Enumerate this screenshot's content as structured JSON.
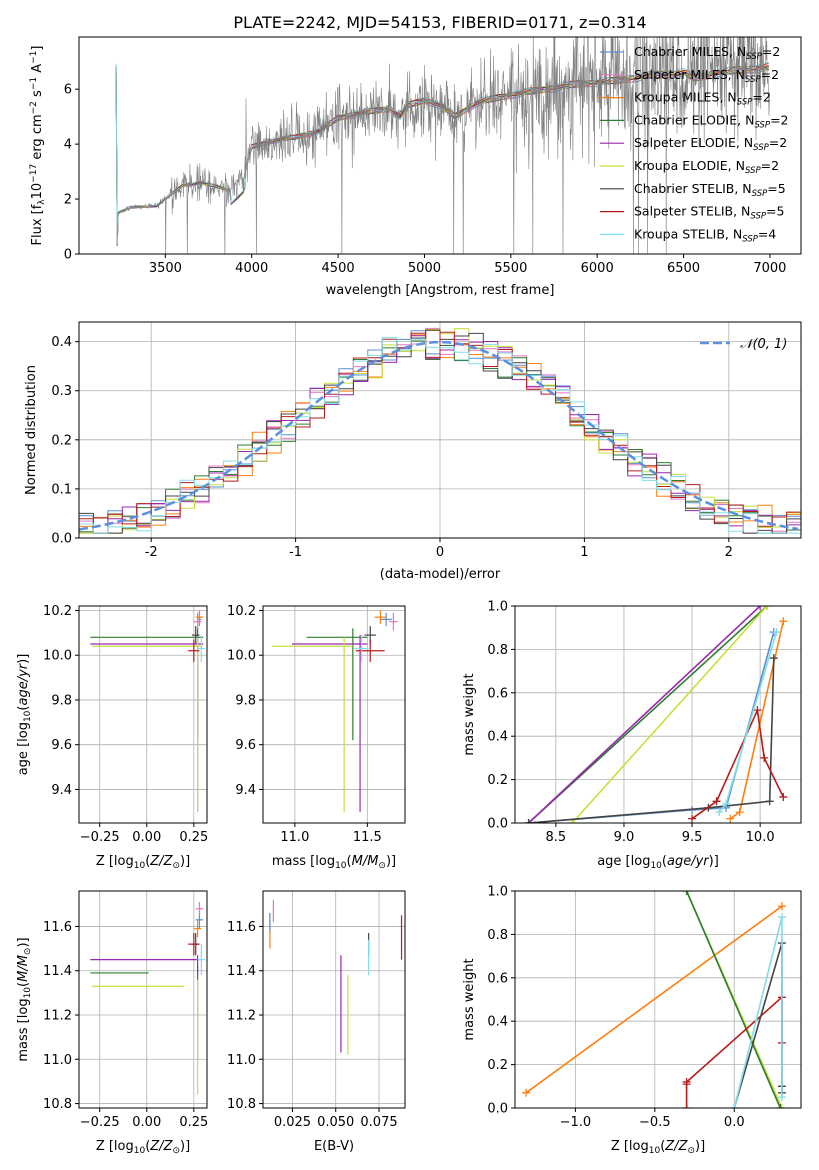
{
  "figure_title": "PLATE=2242, MJD=54153, FIBERID=0171, z=0.314",
  "colors": {
    "chabrier_miles": "#5b8fcf",
    "salpeter_miles": "#e377c2",
    "kroupa_miles": "#ff7f0e",
    "chabrier_elodie": "#2e7d32",
    "salpeter_elodie": "#9c27b0",
    "kroupa_elodie": "#c6e03a",
    "chabrier_stelib": "#444444",
    "salpeter_stelib": "#b71c1c",
    "kroupa_stelib": "#80deea",
    "gauss": "#5b8fe0",
    "data": "#808080"
  },
  "chart_data": [
    {
      "type": "line",
      "panel": "spectrum",
      "title": "PLATE=2242, MJD=54153, FIBERID=0171, z=0.314",
      "xlabel": "wavelength [Angstrom, rest frame]",
      "ylabel": "Flux [fλ 10⁻¹⁷ erg cm⁻² s⁻¹ A⁻¹]",
      "xlim": [
        3000,
        7180
      ],
      "ylim": [
        0,
        7.9
      ],
      "xticks": [
        3500,
        4000,
        4500,
        5000,
        5500,
        6000,
        6500,
        7000
      ],
      "yticks": [
        0,
        2,
        4,
        6
      ],
      "legend_position": "top-right",
      "series": [
        {
          "name": "Chabrier MILES, N_SSP=2",
          "color_key": "chabrier_miles"
        },
        {
          "name": "Salpeter MILES, N_SSP=2",
          "color_key": "salpeter_miles"
        },
        {
          "name": "Kroupa MILES, N_SSP=2",
          "color_key": "kroupa_miles"
        },
        {
          "name": "Chabrier ELODIE, N_SSP=2",
          "color_key": "chabrier_elodie"
        },
        {
          "name": "Salpeter ELODIE, N_SSP=2",
          "color_key": "salpeter_elodie"
        },
        {
          "name": "Kroupa ELODIE, N_SSP=2",
          "color_key": "kroupa_elodie"
        },
        {
          "name": "Chabrier STELIB, N_SSP=5",
          "color_key": "chabrier_stelib"
        },
        {
          "name": "Salpeter STELIB, N_SSP=5",
          "color_key": "salpeter_stelib"
        },
        {
          "name": "Kroupa STELIB, N_SSP=4",
          "color_key": "kroupa_stelib"
        }
      ],
      "continuum": [
        [
          3220,
          0
        ],
        [
          3225,
          1.5
        ],
        [
          3300,
          1.7
        ],
        [
          3450,
          1.75
        ],
        [
          3520,
          2.1
        ],
        [
          3600,
          2.5
        ],
        [
          3700,
          2.6
        ],
        [
          3800,
          2.45
        ],
        [
          3880,
          2.3
        ],
        [
          3950,
          2.8
        ],
        [
          4000,
          3.9
        ],
        [
          4100,
          4.1
        ],
        [
          4250,
          4.25
        ],
        [
          4400,
          4.5
        ],
        [
          4500,
          4.95
        ],
        [
          4600,
          5.1
        ],
        [
          4700,
          5.2
        ],
        [
          4800,
          5.3
        ],
        [
          4860,
          5.0
        ],
        [
          4900,
          5.4
        ],
        [
          5000,
          5.6
        ],
        [
          5100,
          5.4
        ],
        [
          5175,
          5.0
        ],
        [
          5300,
          5.5
        ],
        [
          5500,
          5.8
        ],
        [
          5700,
          6.0
        ],
        [
          5900,
          6.2
        ],
        [
          6100,
          6.3
        ],
        [
          6300,
          6.5
        ],
        [
          6500,
          6.6
        ],
        [
          6563,
          6.4
        ],
        [
          6700,
          6.6
        ],
        [
          6900,
          6.75
        ],
        [
          7000,
          6.8
        ]
      ]
    },
    {
      "type": "histogram",
      "panel": "residuals",
      "xlabel": "(data-model)/error",
      "ylabel": "Normed distribution",
      "xlim": [
        -2.5,
        2.5
      ],
      "ylim": [
        0,
        0.44
      ],
      "xticks": [
        -2,
        -1,
        0,
        1,
        2
      ],
      "yticks": [
        0.0,
        0.1,
        0.2,
        0.3,
        0.4
      ],
      "grid": true,
      "legend_position": "top-right",
      "legend": [
        "𝒩(0, 1)"
      ],
      "gaussian": {
        "mean": 0,
        "sigma": 1
      },
      "bin_width": 0.1
    },
    {
      "type": "line",
      "panel": "age_vs_Z",
      "xlabel": "Z [log10(Z/Z⊙)]",
      "ylabel": "age [log10(age/yr)]",
      "xlim": [
        -0.36,
        0.32
      ],
      "ylim": [
        9.25,
        10.22
      ],
      "xticks": [
        -0.25,
        0.0,
        0.25
      ],
      "yticks": [
        9.4,
        9.6,
        9.8,
        10.0,
        10.2
      ],
      "grid": true,
      "points": [
        {
          "x": 0.28,
          "y": 10.16,
          "xerr": 0.01,
          "yerr": 0.03,
          "color_key": "chabrier_miles"
        },
        {
          "x": 0.27,
          "y": 10.15,
          "xerr": 0.02,
          "yerr": 0.04,
          "color_key": "salpeter_miles"
        },
        {
          "x": 0.28,
          "y": 10.17,
          "xerr": 0.02,
          "yerr": 0.03,
          "color_key": "kroupa_miles"
        },
        {
          "x": 0.27,
          "y": 10.08,
          "x_lo": -0.3,
          "x_hi": 0.3,
          "y_lo": 9.62,
          "y_hi": 10.12,
          "color_key": "chabrier_elodie"
        },
        {
          "x": 0.27,
          "y": 10.05,
          "x_lo": -0.3,
          "x_hi": 0.3,
          "y_lo": 9.3,
          "y_hi": 10.09,
          "color_key": "salpeter_elodie"
        },
        {
          "x": 0.27,
          "y": 10.04,
          "x_lo": -0.29,
          "x_hi": 0.29,
          "y_lo": 9.3,
          "y_hi": 10.08,
          "color_key": "kroupa_elodie"
        },
        {
          "x": 0.26,
          "y": 10.09,
          "xerr": 0.02,
          "yerr": 0.04,
          "color_key": "chabrier_stelib"
        },
        {
          "x": 0.25,
          "y": 10.02,
          "xerr": 0.03,
          "yerr": 0.05,
          "color_key": "salpeter_stelib"
        },
        {
          "x": 0.29,
          "y": 10.03,
          "xerr": 0.02,
          "yerr": 0.06,
          "color_key": "kroupa_stelib"
        }
      ]
    },
    {
      "type": "line",
      "panel": "age_vs_mass",
      "xlabel": "mass [log10(M/M⊙)]",
      "ylabel": "",
      "xlim": [
        10.78,
        11.76
      ],
      "ylim": [
        9.25,
        10.22
      ],
      "xticks": [
        11.0,
        11.5
      ],
      "yticks": [
        9.4,
        9.6,
        9.8,
        10.0,
        10.2
      ],
      "grid": true,
      "points": [
        {
          "x": 11.63,
          "y": 10.16,
          "xerr": 0.04,
          "yerr": 0.03,
          "color_key": "chabrier_miles"
        },
        {
          "x": 11.68,
          "y": 10.15,
          "xerr": 0.03,
          "yerr": 0.04,
          "color_key": "salpeter_miles"
        },
        {
          "x": 11.59,
          "y": 10.17,
          "xerr": 0.04,
          "yerr": 0.03,
          "color_key": "kroupa_miles"
        },
        {
          "x": 11.4,
          "y": 10.08,
          "x_lo": 11.08,
          "x_hi": 11.5,
          "y_lo": 9.62,
          "y_hi": 10.12,
          "color_key": "chabrier_elodie"
        },
        {
          "x": 11.45,
          "y": 10.05,
          "x_lo": 10.98,
          "x_hi": 11.5,
          "y_lo": 9.3,
          "y_hi": 10.09,
          "color_key": "salpeter_elodie"
        },
        {
          "x": 11.34,
          "y": 10.04,
          "x_lo": 10.84,
          "x_hi": 11.4,
          "y_lo": 9.3,
          "y_hi": 10.08,
          "color_key": "kroupa_elodie"
        },
        {
          "x": 11.52,
          "y": 10.09,
          "xerr": 0.04,
          "yerr": 0.04,
          "color_key": "chabrier_stelib"
        },
        {
          "x": 11.52,
          "y": 10.02,
          "xerr": 0.1,
          "yerr": 0.05,
          "color_key": "salpeter_stelib"
        },
        {
          "x": 11.46,
          "y": 10.03,
          "xerr": 0.05,
          "yerr": 0.06,
          "color_key": "kroupa_stelib"
        }
      ]
    },
    {
      "type": "line",
      "panel": "mass_weight_vs_age",
      "xlabel": "age [log10(age/yr)]",
      "ylabel": "mass weight",
      "xlim": [
        8.2,
        10.3
      ],
      "ylim": [
        0,
        1.0
      ],
      "xticks": [
        8.5,
        9.0,
        9.5,
        10.0
      ],
      "yticks": [
        0.0,
        0.2,
        0.4,
        0.6,
        0.8,
        1.0
      ],
      "grid": true,
      "series": [
        {
          "color_key": "chabrier_elodie",
          "x": [
            8.3,
            10.05
          ],
          "y": [
            0.0,
            1.0
          ]
        },
        {
          "color_key": "kroupa_elodie",
          "x": [
            8.62,
            10.05
          ],
          "y": [
            0.0,
            1.0
          ]
        },
        {
          "color_key": "salpeter_elodie",
          "x": [
            8.3,
            10.0
          ],
          "y": [
            0.0,
            1.0
          ]
        },
        {
          "color_key": "chabrier_miles",
          "x": [
            8.3,
            9.5,
            9.75,
            10.1
          ],
          "y": [
            0.0,
            0.06,
            0.07,
            0.88
          ]
        },
        {
          "color_key": "kroupa_miles",
          "x": [
            9.78,
            9.85,
            10.17
          ],
          "y": [
            0.02,
            0.05,
            0.93
          ]
        },
        {
          "color_key": "chabrier_stelib",
          "x": [
            8.3,
            9.62,
            10.07,
            10.1
          ],
          "y": [
            0.0,
            0.07,
            0.1,
            0.76
          ]
        },
        {
          "color_key": "salpeter_stelib",
          "x": [
            9.5,
            9.68,
            9.98,
            10.03,
            10.17
          ],
          "y": [
            0.02,
            0.1,
            0.52,
            0.3,
            0.12
          ]
        },
        {
          "color_key": "kroupa_stelib",
          "x": [
            9.7,
            9.75,
            10.12
          ],
          "y": [
            0.05,
            0.09,
            0.88
          ]
        }
      ]
    },
    {
      "type": "line",
      "panel": "mass_vs_Z",
      "xlabel": "Z [log10(Z/Z⊙)]",
      "ylabel": "mass [log10(M/M⊙)]",
      "xlim": [
        -0.36,
        0.32
      ],
      "ylim": [
        10.78,
        11.76
      ],
      "xticks": [
        -0.25,
        0.0,
        0.25
      ],
      "yticks": [
        10.8,
        11.0,
        11.2,
        11.4,
        11.6
      ],
      "grid": true,
      "points": [
        {
          "x": 0.28,
          "y": 11.63,
          "xerr": 0.02,
          "yerr": 0.04,
          "color_key": "chabrier_miles"
        },
        {
          "x": 0.28,
          "y": 11.68,
          "xerr": 0.02,
          "yerr": 0.03,
          "color_key": "salpeter_miles"
        },
        {
          "x": 0.27,
          "y": 11.59,
          "xerr": 0.02,
          "yerr": 0.04,
          "color_key": "kroupa_miles"
        },
        {
          "x": 0.27,
          "y": 11.39,
          "x_lo": -0.3,
          "x_hi": 0.01,
          "y_lo": 11.0,
          "y_hi": 11.42,
          "color_key": "chabrier_elodie"
        },
        {
          "x": 0.27,
          "y": 11.45,
          "x_lo": -0.3,
          "x_hi": 0.28,
          "y_lo": 11.38,
          "y_hi": 11.47,
          "color_key": "salpeter_elodie"
        },
        {
          "x": 0.27,
          "y": 11.33,
          "x_lo": -0.29,
          "x_hi": 0.2,
          "y_lo": 10.84,
          "y_hi": 11.36,
          "color_key": "kroupa_elodie"
        },
        {
          "x": 0.26,
          "y": 11.52,
          "xerr": 0.02,
          "yerr": 0.05,
          "color_key": "chabrier_stelib"
        },
        {
          "x": 0.25,
          "y": 11.52,
          "xerr": 0.03,
          "yerr": 0.05,
          "color_key": "salpeter_stelib"
        },
        {
          "x": 0.29,
          "y": 11.45,
          "xerr": 0.02,
          "yerr": 0.07,
          "color_key": "kroupa_stelib"
        }
      ]
    },
    {
      "type": "line",
      "panel": "mass_vs_ebv",
      "xlabel": "E(B-V)",
      "ylabel": "",
      "xlim": [
        0.008,
        0.09
      ],
      "ylim": [
        10.78,
        11.76
      ],
      "xticks": [
        0.025,
        0.05,
        0.075
      ],
      "yticks": [
        10.8,
        11.0,
        11.2,
        11.4,
        11.6
      ],
      "grid": true,
      "points": [
        {
          "x": 0.012,
          "y": 11.58,
          "yerr": 0.08,
          "color_key": "kroupa_miles"
        },
        {
          "x": 0.014,
          "y": 11.67,
          "yerr": 0.05,
          "color_key": "salpeter_miles"
        },
        {
          "x": 0.012,
          "y": 11.62,
          "yerr": 0.04,
          "color_key": "chabrier_miles"
        },
        {
          "x": 0.053,
          "y": 11.25,
          "yerr": 0.22,
          "color_key": "salpeter_elodie"
        },
        {
          "x": 0.057,
          "y": 11.2,
          "yerr": 0.18,
          "color_key": "kroupa_elodie"
        },
        {
          "x": 0.069,
          "y": 11.52,
          "yerr": 0.05,
          "color_key": "chabrier_stelib"
        },
        {
          "x": 0.069,
          "y": 11.46,
          "yerr": 0.08,
          "color_key": "kroupa_stelib"
        },
        {
          "x": 0.088,
          "y": 11.55,
          "yerr": 0.1,
          "color_key": "salpeter_stelib"
        }
      ]
    },
    {
      "type": "line",
      "panel": "mass_weight_vs_Z",
      "xlabel": "Z [log10(Z/Z⊙)]",
      "ylabel": "mass weight",
      "xlim": [
        -1.38,
        0.42
      ],
      "ylim": [
        0,
        1.0
      ],
      "xticks": [
        -1.0,
        -0.5,
        0.0
      ],
      "yticks": [
        0.0,
        0.2,
        0.4,
        0.6,
        0.8,
        1.0
      ],
      "grid": true,
      "series": [
        {
          "color_key": "kroupa_miles",
          "x": [
            -1.31,
            0.3
          ],
          "y": [
            0.07,
            0.93
          ]
        },
        {
          "color_key": "kroupa_elodie",
          "x": [
            -0.3,
            0.3
          ],
          "y": [
            1.0,
            0.0
          ]
        },
        {
          "color_key": "chabrier_elodie",
          "x": [
            -0.3,
            0.29
          ],
          "y": [
            1.0,
            0.0
          ]
        },
        {
          "color_key": "salpeter_stelib",
          "x": [
            -0.3,
            -0.3,
            -0.3,
            0.3,
            0.3
          ],
          "y": [
            0.0,
            0.11,
            0.12,
            0.51,
            0.3
          ]
        },
        {
          "color_key": "chabrier_stelib",
          "x": [
            0.0,
            0.3,
            0.3,
            0.3
          ],
          "y": [
            0.0,
            0.76,
            0.1,
            0.07
          ]
        },
        {
          "color_key": "kroupa_stelib",
          "x": [
            0.0,
            0.3,
            0.3
          ],
          "y": [
            0.0,
            0.88,
            0.05
          ]
        }
      ]
    }
  ]
}
